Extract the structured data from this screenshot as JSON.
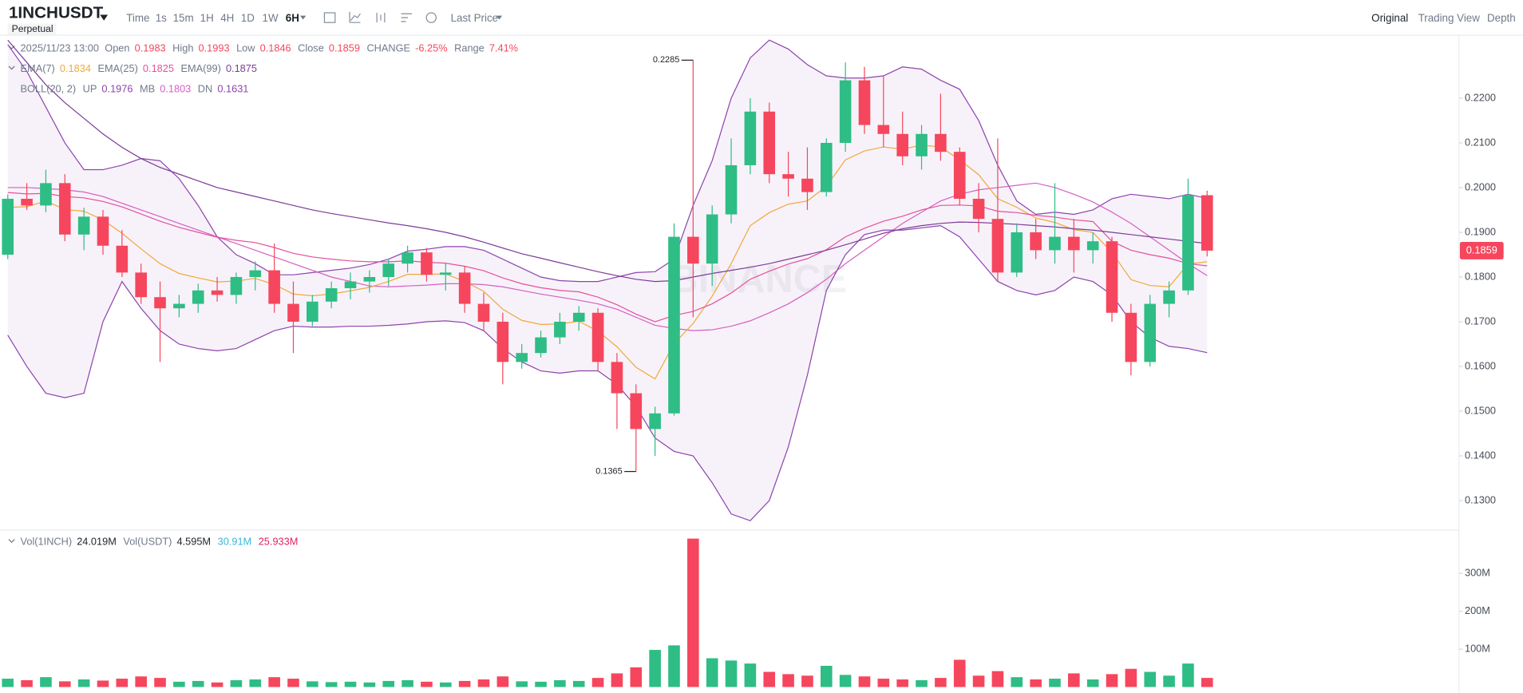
{
  "toolbar": {
    "symbol": "1INCHUSDT",
    "contract": "Perpetual",
    "intervals": [
      "Time",
      "1s",
      "15m",
      "1H",
      "4H",
      "1D",
      "1W",
      "6H"
    ],
    "active_interval_index": 7,
    "price_mode": "Last Price",
    "views": [
      "Original",
      "Trading View",
      "Depth"
    ],
    "active_view_index": 0
  },
  "chart_data": {
    "type": "candlestick",
    "watermark": "BINANCE",
    "up_color": "#2ebd85",
    "down_color": "#f6465d",
    "candles": [
      [
        0.185,
        0.1985,
        0.184,
        0.1975
      ],
      [
        0.1975,
        0.201,
        0.195,
        0.196
      ],
      [
        0.196,
        0.204,
        0.1945,
        0.201
      ],
      [
        0.201,
        0.203,
        0.188,
        0.1895
      ],
      [
        0.1895,
        0.1955,
        0.186,
        0.1935
      ],
      [
        0.1935,
        0.195,
        0.185,
        0.187
      ],
      [
        0.187,
        0.1905,
        0.18,
        0.181
      ],
      [
        0.181,
        0.183,
        0.174,
        0.1755
      ],
      [
        0.1755,
        0.179,
        0.161,
        0.173
      ],
      [
        0.173,
        0.176,
        0.171,
        0.174
      ],
      [
        0.174,
        0.1785,
        0.172,
        0.177
      ],
      [
        0.177,
        0.18,
        0.1745,
        0.176
      ],
      [
        0.176,
        0.181,
        0.174,
        0.18
      ],
      [
        0.18,
        0.1835,
        0.177,
        0.1815
      ],
      [
        0.1815,
        0.1875,
        0.172,
        0.174
      ],
      [
        0.174,
        0.179,
        0.163,
        0.17
      ],
      [
        0.17,
        0.176,
        0.169,
        0.1745
      ],
      [
        0.1745,
        0.179,
        0.173,
        0.1775
      ],
      [
        0.1775,
        0.181,
        0.175,
        0.179
      ],
      [
        0.179,
        0.1815,
        0.1765,
        0.18
      ],
      [
        0.18,
        0.184,
        0.178,
        0.183
      ],
      [
        0.183,
        0.187,
        0.181,
        0.1855
      ],
      [
        0.1855,
        0.1865,
        0.179,
        0.1805
      ],
      [
        0.1805,
        0.183,
        0.177,
        0.181
      ],
      [
        0.181,
        0.1825,
        0.172,
        0.174
      ],
      [
        0.174,
        0.1765,
        0.168,
        0.17
      ],
      [
        0.17,
        0.172,
        0.156,
        0.161
      ],
      [
        0.161,
        0.165,
        0.1595,
        0.163
      ],
      [
        0.163,
        0.168,
        0.162,
        0.1665
      ],
      [
        0.1665,
        0.172,
        0.165,
        0.17
      ],
      [
        0.17,
        0.1735,
        0.168,
        0.172
      ],
      [
        0.172,
        0.173,
        0.159,
        0.161
      ],
      [
        0.161,
        0.163,
        0.146,
        0.154
      ],
      [
        0.154,
        0.156,
        0.1365,
        0.146
      ],
      [
        0.146,
        0.151,
        0.14,
        0.1495
      ],
      [
        0.1495,
        0.192,
        0.149,
        0.189
      ],
      [
        0.189,
        0.2285,
        0.171,
        0.183
      ],
      [
        0.183,
        0.196,
        0.178,
        0.194
      ],
      [
        0.194,
        0.211,
        0.192,
        0.205
      ],
      [
        0.205,
        0.22,
        0.203,
        0.217
      ],
      [
        0.217,
        0.219,
        0.201,
        0.203
      ],
      [
        0.203,
        0.208,
        0.198,
        0.202
      ],
      [
        0.202,
        0.209,
        0.195,
        0.199
      ],
      [
        0.199,
        0.211,
        0.198,
        0.21
      ],
      [
        0.21,
        0.228,
        0.208,
        0.224
      ],
      [
        0.224,
        0.227,
        0.212,
        0.214
      ],
      [
        0.214,
        0.225,
        0.209,
        0.212
      ],
      [
        0.212,
        0.217,
        0.205,
        0.207
      ],
      [
        0.207,
        0.214,
        0.204,
        0.212
      ],
      [
        0.212,
        0.221,
        0.206,
        0.208
      ],
      [
        0.208,
        0.209,
        0.196,
        0.1975
      ],
      [
        0.1975,
        0.201,
        0.19,
        0.193
      ],
      [
        0.193,
        0.211,
        0.179,
        0.181
      ],
      [
        0.181,
        0.192,
        0.18,
        0.19
      ],
      [
        0.19,
        0.193,
        0.184,
        0.186
      ],
      [
        0.186,
        0.201,
        0.183,
        0.189
      ],
      [
        0.189,
        0.193,
        0.181,
        0.186
      ],
      [
        0.186,
        0.19,
        0.183,
        0.188
      ],
      [
        0.188,
        0.189,
        0.17,
        0.172
      ],
      [
        0.172,
        0.174,
        0.158,
        0.161
      ],
      [
        0.161,
        0.176,
        0.16,
        0.174
      ],
      [
        0.174,
        0.179,
        0.171,
        0.177
      ],
      [
        0.177,
        0.202,
        0.176,
        0.1983
      ],
      [
        0.1983,
        0.1993,
        0.1846,
        0.1859
      ]
    ],
    "ylim": [
      0.1235,
      0.2341
    ],
    "yticks": [
      {
        "value": 0.13,
        "label": "0.1300"
      },
      {
        "value": 0.14,
        "label": "0.1400"
      },
      {
        "value": 0.15,
        "label": "0.1500"
      },
      {
        "value": 0.16,
        "label": "0.1600"
      },
      {
        "value": 0.17,
        "label": "0.1700"
      },
      {
        "value": 0.18,
        "label": "0.1800"
      },
      {
        "value": 0.19,
        "label": "0.1900"
      },
      {
        "value": 0.2,
        "label": "0.2000"
      },
      {
        "value": 0.21,
        "label": "0.2100"
      },
      {
        "value": 0.22,
        "label": "0.2200"
      }
    ],
    "ohlc_legend": {
      "datetime": "2025/11/23 13:00",
      "labels": [
        "Open",
        "High",
        "Low",
        "Close"
      ],
      "change_label": "CHANGE",
      "change": "-6.25%",
      "range_label": "Range",
      "range": "7.41%"
    },
    "series": [
      {
        "name": "EMA(7)",
        "color": "#f0a93b",
        "values": [
          0.1956,
          0.1957,
          0.197,
          0.1951,
          0.1947,
          0.1928,
          0.1898,
          0.1863,
          0.183,
          0.1808,
          0.1798,
          0.1789,
          0.1791,
          0.1797,
          0.1783,
          0.1762,
          0.1758,
          0.1762,
          0.1769,
          0.1777,
          0.179,
          0.1806,
          0.1806,
          0.1807,
          0.179,
          0.1768,
          0.1728,
          0.1703,
          0.1694,
          0.1695,
          0.1701,
          0.1679,
          0.1644,
          0.1598,
          0.1572,
          0.1651,
          0.1696,
          0.1757,
          0.183,
          0.1915,
          0.1944,
          0.1963,
          0.197,
          0.2003,
          0.2062,
          0.2082,
          0.2091,
          0.2086,
          0.2095,
          0.2091,
          0.2062,
          0.2029,
          0.1975,
          0.1956,
          0.1932,
          0.1922,
          0.1906,
          0.19,
          0.1855,
          0.1794,
          0.1781,
          0.1778,
          0.1829,
          0.1834
        ]
      },
      {
        "name": "EMA(25)",
        "color": "#e6509e",
        "values": [
          0.1989,
          0.1986,
          0.1987,
          0.198,
          0.1977,
          0.1969,
          0.1957,
          0.1941,
          0.1925,
          0.1911,
          0.19,
          0.1889,
          0.1882,
          0.1877,
          0.1866,
          0.1853,
          0.1845,
          0.184,
          0.1836,
          0.1834,
          0.1834,
          0.1836,
          0.1833,
          0.1831,
          0.1824,
          0.1814,
          0.1798,
          0.1785,
          0.1776,
          0.177,
          0.1767,
          0.1755,
          0.1738,
          0.1717,
          0.17,
          0.1714,
          0.1723,
          0.174,
          0.1764,
          0.1795,
          0.1813,
          0.1829,
          0.1841,
          0.1861,
          0.189,
          0.1909,
          0.1925,
          0.1936,
          0.195,
          0.196,
          0.1961,
          0.1959,
          0.1947,
          0.1944,
          0.1938,
          0.1934,
          0.1928,
          0.1924,
          0.188,
          0.186,
          0.185,
          0.1842,
          0.183,
          0.1825
        ]
      },
      {
        "name": "EMA(99)",
        "color": "#7d3c98",
        "values": [
          0.233,
          0.228,
          0.223,
          0.219,
          0.2155,
          0.212,
          0.209,
          0.2065,
          0.2045,
          0.203,
          0.2015,
          0.2,
          0.199,
          0.198,
          0.197,
          0.196,
          0.195,
          0.1942,
          0.1935,
          0.1928,
          0.1921,
          0.1915,
          0.1908,
          0.19,
          0.189,
          0.1878,
          0.1865,
          0.1852,
          0.1842,
          0.1832,
          0.1822,
          0.1812,
          0.1803,
          0.1795,
          0.179,
          0.1792,
          0.18,
          0.1808,
          0.1815,
          0.1822,
          0.183,
          0.184,
          0.185,
          0.186,
          0.1872,
          0.1885,
          0.1898,
          0.1908,
          0.1915,
          0.192,
          0.1923,
          0.1922,
          0.192,
          0.1918,
          0.1915,
          0.1912,
          0.1908,
          0.1905,
          0.19,
          0.1895,
          0.189,
          0.1885,
          0.188,
          0.1875
        ]
      }
    ],
    "boll": {
      "name": "BOLL(20, 2)",
      "fill": "rgba(155,89,182,0.08)",
      "series": [
        {
          "name": "UP",
          "color": "#8e44ad",
          "values": [
            0.232,
            0.226,
            0.218,
            0.21,
            0.204,
            0.204,
            0.205,
            0.2065,
            0.206,
            0.202,
            0.196,
            0.189,
            0.185,
            0.183,
            0.1805,
            0.1805,
            0.181,
            0.1815,
            0.182,
            0.1828,
            0.184,
            0.1858,
            0.1862,
            0.1868,
            0.1868,
            0.186,
            0.184,
            0.182,
            0.18,
            0.1792,
            0.179,
            0.179,
            0.18,
            0.181,
            0.1812,
            0.184,
            0.196,
            0.206,
            0.22,
            0.229,
            0.233,
            0.231,
            0.2275,
            0.225,
            0.2245,
            0.2245,
            0.225,
            0.227,
            0.2265,
            0.224,
            0.222,
            0.215,
            0.205,
            0.197,
            0.194,
            0.1945,
            0.194,
            0.195,
            0.1975,
            0.1985,
            0.198,
            0.1975,
            0.1985,
            0.1976
          ]
        },
        {
          "name": "MB",
          "color": "#d55fc4",
          "values": [
            0.2,
            0.2,
            0.1998,
            0.1995,
            0.199,
            0.198,
            0.1965,
            0.195,
            0.1935,
            0.192,
            0.1905,
            0.189,
            0.1875,
            0.186,
            0.1845,
            0.183,
            0.1815,
            0.18,
            0.179,
            0.178,
            0.1778,
            0.178,
            0.1782,
            0.1785,
            0.1785,
            0.1783,
            0.1778,
            0.177,
            0.1762,
            0.1755,
            0.1748,
            0.174,
            0.1728,
            0.171,
            0.1692,
            0.1685,
            0.168,
            0.1682,
            0.169,
            0.1702,
            0.172,
            0.174,
            0.1765,
            0.1795,
            0.183,
            0.186,
            0.189,
            0.192,
            0.1945,
            0.197,
            0.1985,
            0.1995,
            0.2,
            0.2005,
            0.201,
            0.2,
            0.1985,
            0.1968,
            0.1945,
            0.192,
            0.189,
            0.186,
            0.183,
            0.1803
          ]
        },
        {
          "name": "DN",
          "color": "#8e44ad",
          "values": [
            0.167,
            0.16,
            0.154,
            0.153,
            0.154,
            0.17,
            0.179,
            0.173,
            0.168,
            0.165,
            0.164,
            0.1635,
            0.164,
            0.166,
            0.168,
            0.169,
            0.1688,
            0.1688,
            0.169,
            0.169,
            0.1692,
            0.1695,
            0.17,
            0.1702,
            0.1698,
            0.168,
            0.164,
            0.161,
            0.159,
            0.1585,
            0.159,
            0.159,
            0.156,
            0.151,
            0.144,
            0.141,
            0.14,
            0.134,
            0.127,
            0.1255,
            0.13,
            0.142,
            0.158,
            0.177,
            0.185,
            0.1895,
            0.1905,
            0.1905,
            0.191,
            0.1915,
            0.189,
            0.184,
            0.179,
            0.177,
            0.176,
            0.177,
            0.18,
            0.179,
            0.176,
            0.17,
            0.1665,
            0.1645,
            0.164,
            0.1631
          ]
        }
      ]
    },
    "volume": {
      "values": [
        22000000,
        18000000,
        26000000,
        15000000,
        20000000,
        17000000,
        22000000,
        28000000,
        24000000,
        14000000,
        16000000,
        12000000,
        18000000,
        20000000,
        26000000,
        22000000,
        15000000,
        13000000,
        14000000,
        12000000,
        16000000,
        18000000,
        14000000,
        12000000,
        16000000,
        20000000,
        28000000,
        15000000,
        14000000,
        18000000,
        16000000,
        24000000,
        36000000,
        52000000,
        98000000,
        110000000,
        392000000,
        76000000,
        70000000,
        62000000,
        40000000,
        34000000,
        30000000,
        56000000,
        32000000,
        28000000,
        22000000,
        20000000,
        18000000,
        24000000,
        72000000,
        30000000,
        42000000,
        26000000,
        20000000,
        22000000,
        36000000,
        20000000,
        34000000,
        48000000,
        40000000,
        30000000,
        62000000,
        24019000
      ],
      "ylim": [
        0,
        408000000
      ],
      "yticks": [
        {
          "value": 100000000,
          "label": "100M"
        },
        {
          "value": 200000000,
          "label": "200M"
        },
        {
          "value": 300000000,
          "label": "300M"
        }
      ],
      "legend": [
        {
          "label": "Vol(1INCH)",
          "value": "24.019M"
        },
        {
          "label": "Vol(USDT)",
          "value": "4.595M"
        },
        {
          "value": "30.91M",
          "color": "#3ab8d8"
        },
        {
          "value": "25.933M",
          "color": "#e0245e"
        }
      ]
    }
  }
}
